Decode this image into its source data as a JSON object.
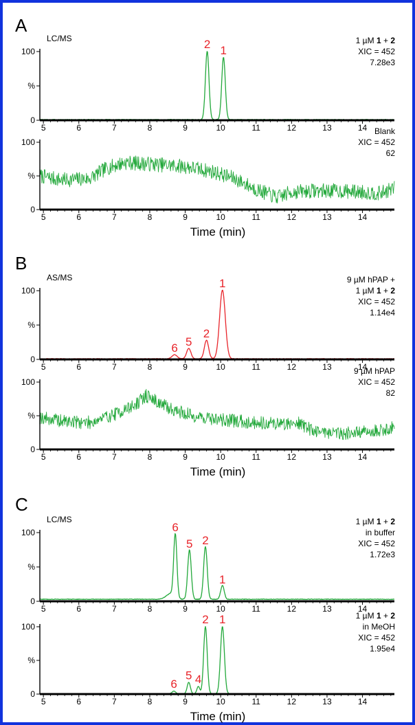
{
  "colors": {
    "green": "#22a83a",
    "red": "#e8242a",
    "border": "#1133dd",
    "axis": "#000000"
  },
  "panels": [
    {
      "letter": "A",
      "mode": "LC/MS"
    },
    {
      "letter": "B",
      "mode": "AS/MS"
    },
    {
      "letter": "C",
      "mode": "LC/MS"
    }
  ],
  "x_axis_label": "Time (min)",
  "chart_data": [
    {
      "type": "line",
      "panel": "A",
      "mode": "LC/MS",
      "color": "green",
      "condition_lines": [
        "1 µM 1 + 2",
        "XIC = 452",
        "7.28e3"
      ],
      "xlim": [
        4.9,
        14.9
      ],
      "ylim": [
        0,
        100
      ],
      "xticks": [
        "5",
        "6",
        "7",
        "8",
        "9",
        "10",
        "11",
        "12",
        "13",
        "14"
      ],
      "yticks": [
        "0",
        "%",
        "100"
      ],
      "trace": {
        "kind": "peaks",
        "baseline": 1,
        "noise": 0.6,
        "peaks": [
          {
            "x": 9.62,
            "height": 100,
            "width": 0.05
          },
          {
            "x": 10.08,
            "height": 91,
            "width": 0.05
          }
        ]
      },
      "peak_labels": [
        {
          "label": "2",
          "x": 9.62,
          "y": 100
        },
        {
          "label": "1",
          "x": 10.08,
          "y": 91
        }
      ]
    },
    {
      "type": "line",
      "panel": "A",
      "color": "green",
      "condition_lines": [
        "Blank",
        "XIC = 452",
        "62"
      ],
      "xlim": [
        4.9,
        14.9
      ],
      "ylim": [
        0,
        100
      ],
      "xticks": [
        "5",
        "6",
        "7",
        "8",
        "9",
        "10",
        "11",
        "12",
        "13",
        "14"
      ],
      "yticks": [
        "0",
        "%",
        "100"
      ],
      "show_xlabel": true,
      "trace": {
        "kind": "noise",
        "seed": 7,
        "amp": 11,
        "envelope": [
          [
            4.9,
            50
          ],
          [
            5.5,
            44
          ],
          [
            6.3,
            46
          ],
          [
            6.8,
            62
          ],
          [
            7.3,
            70
          ],
          [
            8.2,
            67
          ],
          [
            9.0,
            64
          ],
          [
            9.8,
            56
          ],
          [
            10.4,
            46
          ],
          [
            11.0,
            30
          ],
          [
            11.6,
            18
          ],
          [
            12.0,
            26
          ],
          [
            12.6,
            28
          ],
          [
            13.2,
            28
          ],
          [
            14.0,
            26
          ],
          [
            14.5,
            24
          ],
          [
            14.9,
            32
          ]
        ]
      }
    },
    {
      "type": "line",
      "panel": "B",
      "mode": "AS/MS",
      "color": "red",
      "condition_lines": [
        "9 µM hPAP +",
        "1 µM 1 + 2",
        "XIC = 452",
        "1.14e4"
      ],
      "xlim": [
        4.9,
        14.9
      ],
      "ylim": [
        0,
        100
      ],
      "xticks": [
        "5",
        "6",
        "7",
        "8",
        "9",
        "10",
        "11",
        "12",
        "13",
        "14"
      ],
      "yticks": [
        "0",
        "%",
        "100"
      ],
      "trace": {
        "kind": "peaks",
        "baseline": 1,
        "noise": 0.5,
        "peaks": [
          {
            "x": 8.7,
            "height": 6,
            "width": 0.07
          },
          {
            "x": 9.1,
            "height": 15,
            "width": 0.06
          },
          {
            "x": 9.6,
            "height": 27,
            "width": 0.06
          },
          {
            "x": 10.05,
            "height": 100,
            "width": 0.08
          }
        ]
      },
      "peak_labels": [
        {
          "label": "6",
          "x": 8.7,
          "y": 6
        },
        {
          "label": "5",
          "x": 9.1,
          "y": 15
        },
        {
          "label": "2",
          "x": 9.6,
          "y": 27
        },
        {
          "label": "1",
          "x": 10.05,
          "y": 100
        }
      ]
    },
    {
      "type": "line",
      "panel": "B",
      "color": "green",
      "condition_lines": [
        "9 µM hPAP",
        "XIC = 452",
        "82"
      ],
      "xlim": [
        4.9,
        14.9
      ],
      "ylim": [
        0,
        100
      ],
      "xticks": [
        "5",
        "6",
        "7",
        "8",
        "9",
        "10",
        "11",
        "12",
        "13",
        "14"
      ],
      "yticks": [
        "0",
        "%",
        "100"
      ],
      "show_xlabel": true,
      "trace": {
        "kind": "noise",
        "seed": 19,
        "amp": 10,
        "envelope": [
          [
            4.9,
            48
          ],
          [
            5.5,
            42
          ],
          [
            6.3,
            40
          ],
          [
            7.0,
            52
          ],
          [
            7.6,
            66
          ],
          [
            7.9,
            80
          ],
          [
            8.5,
            62
          ],
          [
            9.2,
            50
          ],
          [
            10.0,
            44
          ],
          [
            11.0,
            40
          ],
          [
            11.8,
            38
          ],
          [
            12.2,
            40
          ],
          [
            12.6,
            28
          ],
          [
            13.5,
            24
          ],
          [
            14.2,
            26
          ],
          [
            14.9,
            32
          ]
        ]
      }
    },
    {
      "type": "line",
      "panel": "C",
      "mode": "LC/MS",
      "color": "green",
      "condition_lines": [
        "1 µM 1 + 2",
        "in buffer",
        "XIC = 452",
        "1.72e3"
      ],
      "xlim": [
        4.9,
        14.9
      ],
      "ylim": [
        0,
        100
      ],
      "xticks": [
        "5",
        "6",
        "7",
        "8",
        "9",
        "10",
        "11",
        "12",
        "13",
        "14"
      ],
      "yticks": [
        "0",
        "%",
        "100"
      ],
      "trace": {
        "kind": "peaks",
        "baseline": 3,
        "noise": 0.8,
        "peaks": [
          {
            "x": 8.58,
            "height": 8,
            "width": 0.12
          },
          {
            "x": 8.72,
            "height": 92,
            "width": 0.045
          },
          {
            "x": 9.12,
            "height": 72,
            "width": 0.05
          },
          {
            "x": 9.57,
            "height": 77,
            "width": 0.05
          },
          {
            "x": 10.05,
            "height": 20,
            "width": 0.05
          }
        ]
      },
      "peak_labels": [
        {
          "label": "6",
          "x": 8.72,
          "y": 97
        },
        {
          "label": "5",
          "x": 9.12,
          "y": 73
        },
        {
          "label": "2",
          "x": 9.57,
          "y": 78
        },
        {
          "label": "1",
          "x": 10.05,
          "y": 21
        }
      ]
    },
    {
      "type": "line",
      "panel": "C",
      "color": "green",
      "condition_lines": [
        "1 µM 1 + 2",
        "in MeOH",
        "XIC = 452",
        "1.95e4"
      ],
      "xlim": [
        4.9,
        14.9
      ],
      "ylim": [
        0,
        100
      ],
      "xticks": [
        "5",
        "6",
        "7",
        "8",
        "9",
        "10",
        "11",
        "12",
        "13",
        "14"
      ],
      "yticks": [
        "0",
        "%",
        "100"
      ],
      "show_xlabel": true,
      "trace": {
        "kind": "peaks",
        "baseline": 0.5,
        "noise": 0.4,
        "peaks": [
          {
            "x": 8.68,
            "height": 4,
            "width": 0.05
          },
          {
            "x": 9.1,
            "height": 17,
            "width": 0.045
          },
          {
            "x": 9.37,
            "height": 11,
            "width": 0.04
          },
          {
            "x": 9.57,
            "height": 100,
            "width": 0.05
          },
          {
            "x": 10.05,
            "height": 100,
            "width": 0.055
          }
        ]
      },
      "peak_labels": [
        {
          "label": "6",
          "x": 8.68,
          "y": 4
        },
        {
          "label": "5",
          "x": 9.1,
          "y": 17
        },
        {
          "label": "4",
          "x": 9.37,
          "y": 11
        },
        {
          "label": "2",
          "x": 9.57,
          "y": 100
        },
        {
          "label": "1",
          "x": 10.05,
          "y": 100
        }
      ]
    }
  ]
}
